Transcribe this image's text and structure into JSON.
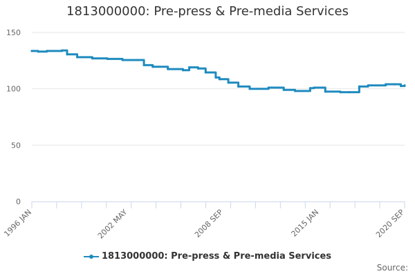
{
  "chart_data": {
    "type": "line",
    "title": "1813000000: Pre-press & Pre-media Services",
    "ylim": [
      0,
      150
    ],
    "y_ticks": [
      0,
      50,
      100,
      150
    ],
    "x_tick_labels": [
      "1996 JAN",
      "2002 MAY",
      "2008 SEP",
      "2015 JAN",
      "2020 SEP"
    ],
    "grid": "horizontal",
    "legend_position": "bottom",
    "series": [
      {
        "name": "1813000000: Pre-press & Pre-media Services",
        "color": "#1f8bbf",
        "x": [
          "1996-01",
          "1996-06",
          "1997-01",
          "1998-01",
          "1998-05",
          "1999-01",
          "2000-01",
          "2001-01",
          "2002-01",
          "2003-01",
          "2003-06",
          "2004-01",
          "2005-01",
          "2006-01",
          "2006-06",
          "2007-01",
          "2007-07",
          "2008-03",
          "2008-06",
          "2009-01",
          "2009-09",
          "2010-06",
          "2011-09",
          "2012-09",
          "2013-06",
          "2014-06",
          "2014-09",
          "2015-06",
          "2016-06",
          "2017-01",
          "2017-09",
          "2018-04",
          "2019-06",
          "2020-01",
          "2020-06",
          "2020-09"
        ],
        "values": [
          133.5,
          133,
          133.5,
          134,
          130.5,
          128,
          127,
          126.5,
          125.5,
          125.5,
          121,
          119.5,
          117.5,
          116.5,
          119,
          118,
          114.5,
          110,
          108.5,
          105.5,
          102,
          100,
          101,
          99,
          98,
          100.5,
          101,
          97.5,
          97,
          97,
          102,
          103,
          104,
          104,
          102.5,
          103
        ]
      }
    ]
  },
  "credits": "Source:"
}
